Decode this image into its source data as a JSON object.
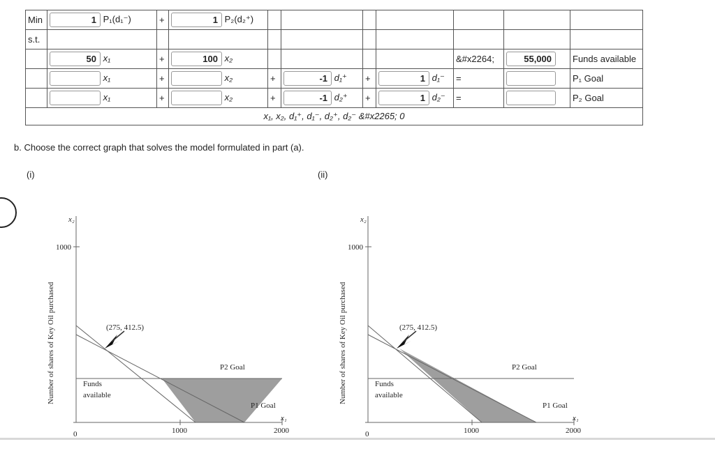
{
  "table": {
    "min_label": "Min",
    "st_label": "s.t.",
    "obj": {
      "c1": "1",
      "p1": "P₁(d₁⁻)",
      "plus": "+",
      "c2": "1",
      "p2": "P₂(d₂⁺)"
    },
    "r1": {
      "c1": "50",
      "v1": "x₁",
      "plus": "+",
      "c2": "100",
      "v2": "x₂",
      "rel": "&#x2264;",
      "rhs": "55,000",
      "label": "Funds available"
    },
    "r2": {
      "v1": "x₁",
      "plus": "+",
      "v2": "x₂",
      "plus2": "+",
      "c3": "-1",
      "v3": "d₁⁺",
      "plus3": "+",
      "c4": "1",
      "v4": "d₁⁻",
      "rel": "=",
      "label": "P₁ Goal"
    },
    "r3": {
      "v1": "x₁",
      "plus": "+",
      "v2": "x₂",
      "plus2": "+",
      "c3": "-1",
      "v3": "d₂⁺",
      "plus3": "+",
      "c4": "1",
      "v4": "d₂⁻",
      "rel": "=",
      "label": "P₂ Goal"
    },
    "nonneg": "x₁, x₂, d₁⁺, d₁⁻, d₂⁺, d₂⁻ &#x2265; 0"
  },
  "question": "b. Choose the correct graph that solves the model formulated in part (a).",
  "options": [
    "(i)",
    "(ii)"
  ],
  "graph": {
    "y_axis_var": "x₂",
    "x_axis_var": "x₁",
    "y_tick": "1000",
    "origin": "0",
    "x_ticks": [
      "1000",
      "2000"
    ],
    "y_title": "Number of shares of Key Oil purchased",
    "point_label": "(275, 412.5)",
    "p2_label": "P2 Goal",
    "funds_label_1": "Funds",
    "funds_label_2": "available",
    "p1_label": "P1 Goal"
  },
  "colors": {
    "shade": "#9e9e9e",
    "line": "#666666"
  }
}
